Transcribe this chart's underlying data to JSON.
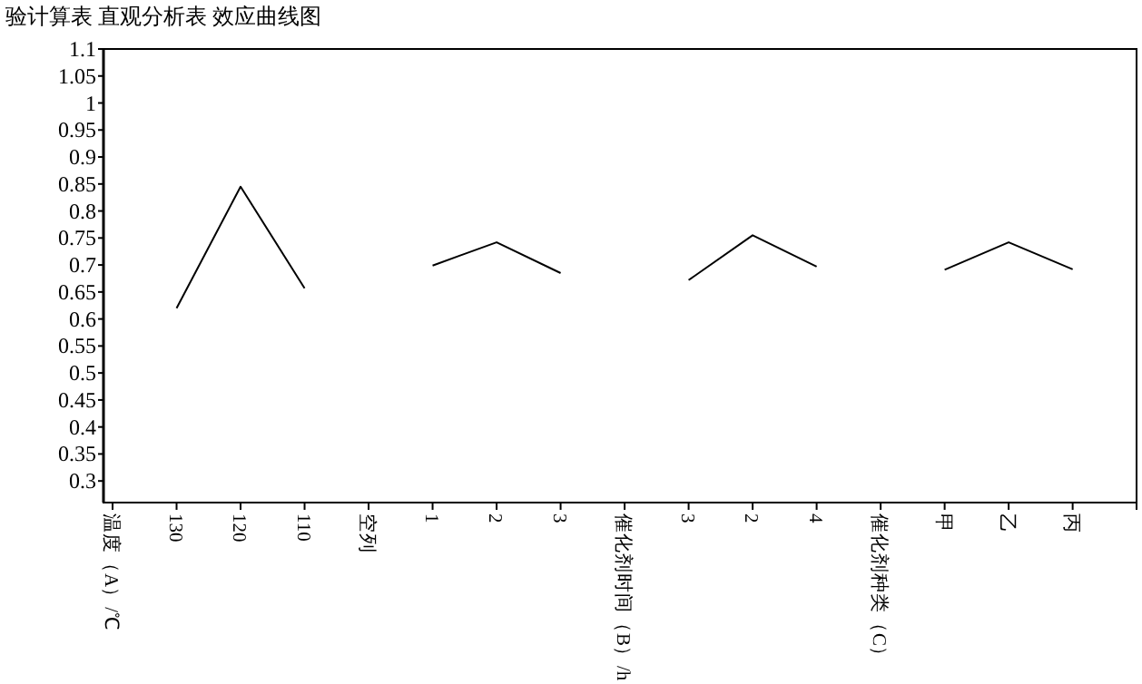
{
  "chart_data": {
    "type": "line",
    "title": "验计算表 直观分析表 效应曲线图",
    "categories": [
      "温度（A）/℃",
      "130",
      "120",
      "110",
      "空列",
      "1",
      "2",
      "3",
      "催化剂时间（B）/h",
      "3",
      "2",
      "4",
      "催化剂种类（C）",
      "甲",
      "乙",
      "丙"
    ],
    "series": [
      {
        "color": "#000000",
        "values": [
          null,
          0.62,
          0.845,
          0.657,
          null,
          0.699,
          0.742,
          0.685,
          null,
          0.672,
          0.755,
          0.697,
          null,
          0.691,
          0.742,
          0.692
        ]
      }
    ],
    "ylim": [
      0.26,
      1.1
    ],
    "yticks": [
      0.3,
      0.35,
      0.4,
      0.45,
      0.5,
      0.55,
      0.6,
      0.65,
      0.7,
      0.75,
      0.8,
      0.85,
      0.9,
      0.95,
      1,
      1.05,
      1.1
    ],
    "grid": false,
    "line_style": "solid"
  }
}
